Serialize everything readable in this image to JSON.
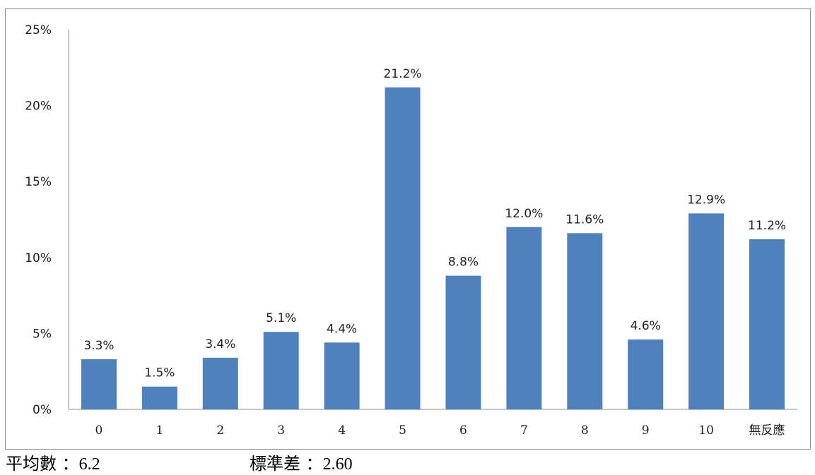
{
  "chart_data": {
    "type": "bar",
    "categories": [
      "0",
      "1",
      "2",
      "3",
      "4",
      "5",
      "6",
      "7",
      "8",
      "9",
      "10",
      "無反應"
    ],
    "values": [
      3.3,
      1.5,
      3.4,
      5.1,
      4.4,
      21.2,
      8.8,
      12.0,
      11.6,
      4.6,
      12.9,
      11.2
    ],
    "value_labels": [
      "3.3%",
      "1.5%",
      "3.4%",
      "5.1%",
      "4.4%",
      "21.2%",
      "8.8%",
      "12.0%",
      "11.6%",
      "4.6%",
      "12.9%",
      "11.2%"
    ],
    "y_ticks": [
      "0%",
      "5%",
      "10%",
      "15%",
      "20%",
      "25%"
    ],
    "ylim": [
      0,
      25
    ],
    "grid": false,
    "legend": "none",
    "bar_color": "#4f81bd"
  },
  "stats": {
    "mean_label": "平均數",
    "mean_value": "：6.2",
    "sd_label": "標準差",
    "sd_value": "：2.60"
  }
}
